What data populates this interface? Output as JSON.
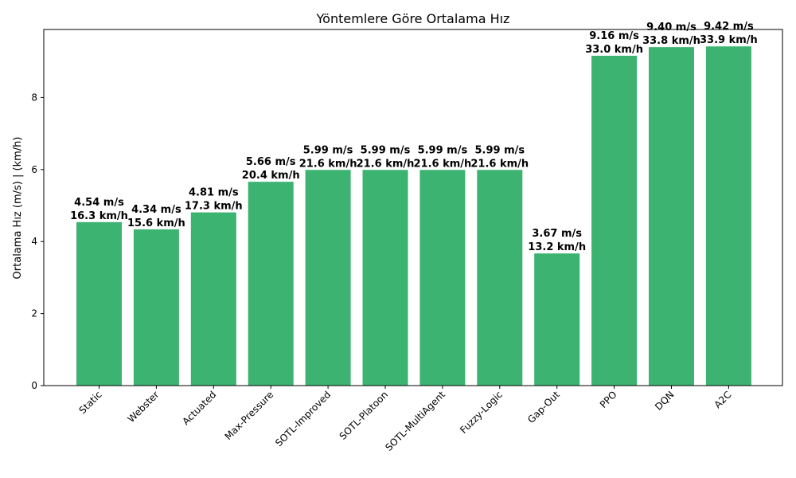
{
  "chart_data": {
    "type": "bar",
    "title": "Yöntemlere Göre Ortalama Hız",
    "xlabel": "",
    "ylabel": "Ortalama Hız (m/s) | (km/h)",
    "categories": [
      "Static",
      "Webster",
      "Actuated",
      "Max-Pressure",
      "SOTL-Improved",
      "SOTL-Platoon",
      "SOTL-MultiAgent",
      "Fuzzy-Logic",
      "Gap-Out",
      "PPO",
      "DQN",
      "A2C"
    ],
    "values": [
      4.54,
      4.34,
      4.81,
      5.66,
      5.99,
      5.99,
      5.99,
      5.99,
      3.67,
      9.16,
      9.4,
      9.42
    ],
    "labels_ms": [
      "4.54 m/s",
      "4.34 m/s",
      "4.81 m/s",
      "5.66 m/s",
      "5.99 m/s",
      "5.99 m/s",
      "5.99 m/s",
      "5.99 m/s",
      "3.67 m/s",
      "9.16 m/s",
      "9.40 m/s",
      "9.42 m/s"
    ],
    "labels_kmh": [
      "16.3 km/h",
      "15.6 km/h",
      "17.3 km/h",
      "20.4 km/h",
      "21.6 km/h",
      "21.6 km/h",
      "21.6 km/h",
      "21.6 km/h",
      "13.2 km/h",
      "33.0 km/h",
      "33.8 km/h",
      "33.9 km/h"
    ],
    "yticks": [
      0,
      2,
      4,
      6,
      8
    ],
    "ylim": [
      0,
      9.89
    ],
    "grid": false,
    "legend": "none",
    "bar_color": "#3cb371"
  }
}
